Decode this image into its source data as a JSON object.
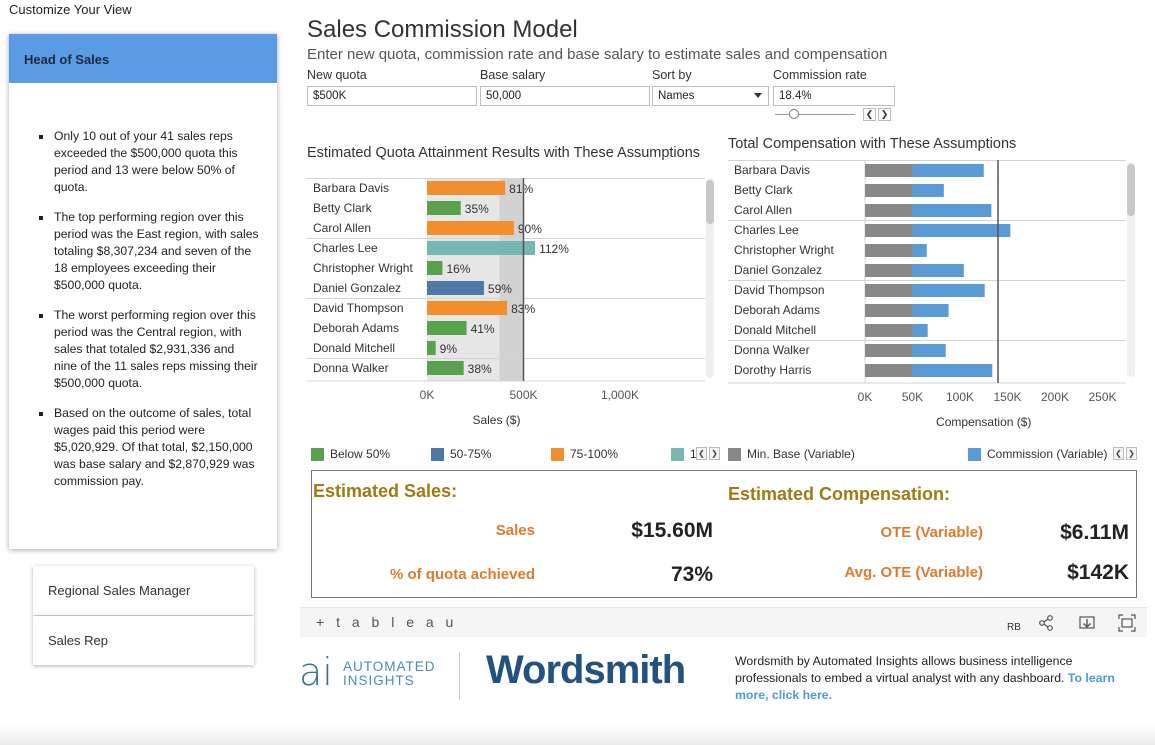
{
  "customize_label": "Customize Your View",
  "roles": {
    "active": "Head of Sales",
    "others": [
      "Regional Sales Manager",
      "Sales Rep"
    ]
  },
  "insights": [
    "Only 10 out of your 41 sales reps exceeded the $500,000 quota this period and 13 were below 50% of quota.",
    "The top performing region over this period was the East region, with sales totaling $8,307,234 and seven of the 18 employees exceeding their $500,000 quota.",
    "The worst performing region over this period was the Central region, with sales that totaled $2,931,336 and nine of the 11 sales reps missing their $500,000 quota.",
    "Based on the outcome of sales, total wages paid this period were $5,020,929. Of that total, $2,150,000 was base salary and $2,870,929 was commission pay."
  ],
  "header": {
    "title": "Sales Commission Model",
    "subtitle": "Enter new quota, commission rate and base salary to estimate sales and compensation"
  },
  "controls": {
    "quota": {
      "label": "New quota",
      "value": "$500K"
    },
    "base": {
      "label": "Base salary",
      "value": "50,000"
    },
    "sort": {
      "label": "Sort by",
      "value": "Names"
    },
    "rate": {
      "label": "Commission rate",
      "value": "18.4%"
    }
  },
  "colors": {
    "below50": "#59a14f",
    "r50_75": "#4e79a7",
    "r75_100": "#f28e2b",
    "over100": "#76b7b2",
    "base": "#888888",
    "commission": "#5b9bd5",
    "kpi_label": "#dc7b2e",
    "kpi_head": "#a07a14"
  },
  "chart_data": [
    {
      "type": "bar",
      "orientation": "horizontal",
      "title": "Estimated Quota Attainment Results with These Assumptions",
      "xlabel": "Sales ($)",
      "xlim": [
        0,
        1400000
      ],
      "xticks": [
        "0K",
        "500K",
        "1,000K"
      ],
      "categories": [
        "Barbara Davis",
        "Betty Clark",
        "Carol Allen",
        "Charles Lee",
        "Christopher Wright",
        "Daniel Gonzalez",
        "David Thompson",
        "Deborah Adams",
        "Donald Mitchell",
        "Donna Walker"
      ],
      "values": [
        405000,
        175000,
        450000,
        560000,
        80000,
        295000,
        415000,
        205000,
        45000,
        190000
      ],
      "labels": [
        "81%",
        "35%",
        "90%",
        "112%",
        "16%",
        "59%",
        "83%",
        "41%",
        "9%",
        "38%"
      ],
      "bands": [
        "75-100%",
        "Below 50%",
        "75-100%",
        "100%+",
        "Below 50%",
        "50-75%",
        "75-100%",
        "Below 50%",
        "Below 50%",
        "Below 50%"
      ],
      "reference_line": 500000
    },
    {
      "type": "bar",
      "orientation": "horizontal",
      "stacked": true,
      "title": "Total Compensation with These Assumptions",
      "xlabel": "Compensation ($)",
      "xlim": [
        0,
        280000
      ],
      "xticks": [
        "0K",
        "50K",
        "100K",
        "150K",
        "200K",
        "250K"
      ],
      "categories": [
        "Barbara Davis",
        "Betty Clark",
        "Carol Allen",
        "Charles Lee",
        "Christopher Wright",
        "Daniel Gonzalez",
        "David Thompson",
        "Deborah Adams",
        "Donald Mitchell",
        "Donna Walker",
        "Dorothy Harris"
      ],
      "series": [
        {
          "name": "Min. Base (Variable)",
          "values": [
            50000,
            50000,
            50000,
            50000,
            50000,
            50000,
            50000,
            50000,
            50000,
            50000,
            50000
          ]
        },
        {
          "name": "Commission (Variable)",
          "values": [
            75000,
            33000,
            83000,
            103000,
            15000,
            54000,
            76000,
            38000,
            16000,
            35000,
            84000
          ]
        }
      ],
      "reference_line": 140000
    }
  ],
  "legend": [
    {
      "label": "Below 50%",
      "color": "#59a14f"
    },
    {
      "label": "50-75%",
      "color": "#4e79a7"
    },
    {
      "label": "75-100%",
      "color": "#f28e2b"
    },
    {
      "label": "1",
      "color": "#76b7b2"
    },
    {
      "label": "Min. Base (Variable)",
      "color": "#888888"
    },
    {
      "label": "Commission (Variable)",
      "color": "#5b9bd5"
    }
  ],
  "kpi": {
    "sales_heading": "Estimated Sales:",
    "comp_heading": "Estimated Compensation:",
    "sales_label": "Sales",
    "sales_value": "$15.60M",
    "quota_label": "% of quota achieved",
    "quota_value": "73%",
    "ote_label": "OTE (Variable)",
    "ote_value": "$6.11M",
    "avg_ote_label": "Avg. OTE (Variable)",
    "avg_ote_value": "$142K"
  },
  "toolbar": {
    "logo": "+ t a b l e a u",
    "user": "RB"
  },
  "footer": {
    "brand_mark": "ai",
    "brand_line1": "AUTOMATED",
    "brand_line2": "INSIGHTS",
    "product": "Wordsmith",
    "description": "Wordsmith by Automated Insights allows business intelligence professionals to embed a virtual analyst with any dashboard.",
    "link": "To learn more, click here."
  }
}
